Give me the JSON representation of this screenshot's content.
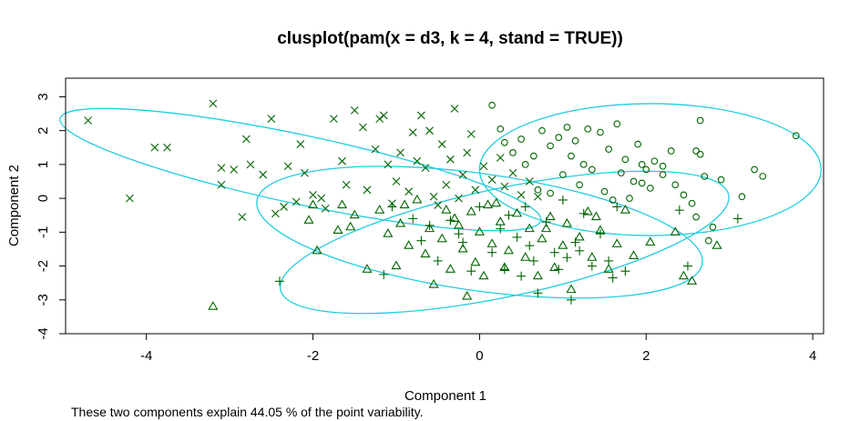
{
  "chart_data": {
    "type": "scatter",
    "title": "clusplot(pam(x = d3, k = 4, stand = TRUE))",
    "xlabel": "Component 1",
    "ylabel": "Component 2",
    "subtitle": "These two components explain 44.05 % of the point variability.",
    "xlim": [
      -4.97,
      4.13
    ],
    "ylim": [
      -4.0,
      3.55
    ],
    "xticks": [
      -4,
      -2,
      0,
      2,
      4
    ],
    "yticks": [
      -4,
      -3,
      -2,
      -1,
      0,
      1,
      2,
      3
    ],
    "grid": false,
    "point_color": "#006400",
    "ellipse_color": "#22ccdd",
    "series": [
      {
        "symbol": "cross",
        "points": [
          [
            -4.7,
            2.3
          ],
          [
            -4.2,
            0.0
          ],
          [
            -3.9,
            1.5
          ],
          [
            -3.75,
            1.5
          ],
          [
            -3.2,
            2.8
          ],
          [
            -3.1,
            0.9
          ],
          [
            -3.1,
            0.4
          ],
          [
            -2.95,
            0.85
          ],
          [
            -2.85,
            -0.55
          ],
          [
            -2.8,
            1.75
          ],
          [
            -2.75,
            1.0
          ],
          [
            -2.6,
            0.7
          ],
          [
            -2.5,
            2.35
          ],
          [
            -2.45,
            -0.45
          ],
          [
            -2.35,
            -0.25
          ],
          [
            -2.3,
            0.95
          ],
          [
            -2.2,
            -0.1
          ],
          [
            -2.15,
            1.6
          ],
          [
            -2.1,
            0.75
          ],
          [
            -2.0,
            0.1
          ],
          [
            -1.9,
            0.0
          ],
          [
            -1.85,
            -0.3
          ],
          [
            -1.75,
            2.35
          ],
          [
            -1.65,
            1.1
          ],
          [
            -1.6,
            0.4
          ],
          [
            -1.5,
            2.6
          ],
          [
            -1.4,
            2.1
          ],
          [
            -1.35,
            0.25
          ],
          [
            -1.25,
            1.45
          ],
          [
            -1.15,
            2.45
          ],
          [
            -1.1,
            1.0
          ],
          [
            -1.0,
            0.5
          ],
          [
            -0.95,
            1.35
          ],
          [
            -0.85,
            0.2
          ],
          [
            -0.7,
            2.45
          ],
          [
            -0.65,
            0.9
          ],
          [
            -0.55,
            0.05
          ],
          [
            -0.45,
            1.6
          ],
          [
            -0.4,
            0.4
          ],
          [
            -0.35,
            1.15
          ],
          [
            -0.3,
            2.65
          ],
          [
            -0.2,
            0.7
          ],
          [
            -0.15,
            1.35
          ],
          [
            -0.05,
            0.25
          ],
          [
            0.05,
            0.95
          ],
          [
            0.15,
            0.55
          ],
          [
            0.25,
            1.2
          ],
          [
            0.3,
            0.35
          ],
          [
            0.4,
            0.75
          ],
          [
            0.5,
            0.1
          ],
          [
            0.6,
            0.5
          ],
          [
            0.7,
            0.05
          ],
          [
            -1.2,
            2.35
          ],
          [
            -0.8,
            1.95
          ],
          [
            -0.6,
            2.0
          ],
          [
            -1.05,
            -0.15
          ],
          [
            -0.1,
            1.9
          ],
          [
            -0.25,
            0.0
          ],
          [
            -0.75,
            1.1
          ],
          [
            -0.5,
            -0.2
          ]
        ]
      },
      {
        "symbol": "circle",
        "points": [
          [
            0.15,
            2.75
          ],
          [
            0.25,
            2.05
          ],
          [
            0.3,
            1.65
          ],
          [
            0.4,
            1.35
          ],
          [
            0.5,
            1.75
          ],
          [
            0.55,
            1.0
          ],
          [
            0.65,
            1.25
          ],
          [
            0.7,
            0.25
          ],
          [
            0.75,
            2.0
          ],
          [
            0.85,
            1.55
          ],
          [
            0.95,
            1.8
          ],
          [
            1.0,
            0.7
          ],
          [
            1.05,
            2.1
          ],
          [
            1.1,
            1.25
          ],
          [
            1.15,
            1.7
          ],
          [
            1.2,
            0.4
          ],
          [
            1.3,
            2.05
          ],
          [
            1.35,
            0.85
          ],
          [
            1.45,
            1.95
          ],
          [
            1.5,
            0.2
          ],
          [
            1.55,
            1.45
          ],
          [
            1.65,
            2.2
          ],
          [
            1.7,
            0.75
          ],
          [
            1.75,
            1.15
          ],
          [
            1.8,
            0.0
          ],
          [
            1.85,
            0.5
          ],
          [
            1.9,
            1.6
          ],
          [
            1.95,
            1.0
          ],
          [
            2.0,
            0.85
          ],
          [
            2.05,
            0.3
          ],
          [
            2.1,
            1.1
          ],
          [
            2.2,
            0.7
          ],
          [
            2.3,
            1.4
          ],
          [
            2.35,
            0.4
          ],
          [
            2.45,
            0.1
          ],
          [
            2.55,
            -0.15
          ],
          [
            2.6,
            -0.55
          ],
          [
            2.65,
            1.3
          ],
          [
            2.7,
            0.65
          ],
          [
            2.75,
            -1.25
          ],
          [
            2.8,
            -0.85
          ],
          [
            2.9,
            0.55
          ],
          [
            3.15,
            0.05
          ],
          [
            3.3,
            0.85
          ],
          [
            3.4,
            0.65
          ],
          [
            3.8,
            1.85
          ],
          [
            0.85,
            0.15
          ],
          [
            1.25,
            1.0
          ],
          [
            1.6,
            -0.05
          ],
          [
            2.2,
            0.95
          ],
          [
            1.95,
            0.45
          ],
          [
            2.65,
            2.3
          ],
          [
            2.6,
            1.4
          ]
        ]
      },
      {
        "symbol": "triangle",
        "points": [
          [
            -3.2,
            -3.2
          ],
          [
            -2.05,
            -0.65
          ],
          [
            -2.0,
            -0.2
          ],
          [
            -1.95,
            -1.55
          ],
          [
            -1.65,
            -0.2
          ],
          [
            -1.55,
            -0.85
          ],
          [
            -1.35,
            -2.1
          ],
          [
            -1.2,
            -0.35
          ],
          [
            -1.1,
            -1.05
          ],
          [
            -1.0,
            -2.0
          ],
          [
            -0.95,
            -0.75
          ],
          [
            -0.85,
            -1.4
          ],
          [
            -0.75,
            -0.05
          ],
          [
            -0.65,
            -1.65
          ],
          [
            -0.6,
            -0.9
          ],
          [
            -0.55,
            -2.55
          ],
          [
            -0.45,
            -1.2
          ],
          [
            -0.4,
            -0.35
          ],
          [
            -0.35,
            -2.1
          ],
          [
            -0.25,
            -0.8
          ],
          [
            -0.2,
            -1.5
          ],
          [
            -0.15,
            -2.9
          ],
          [
            -0.1,
            -0.4
          ],
          [
            -0.05,
            -1.9
          ],
          [
            0.0,
            -1.0
          ],
          [
            0.05,
            -2.3
          ],
          [
            0.1,
            -0.2
          ],
          [
            0.15,
            -1.35
          ],
          [
            0.25,
            -0.7
          ],
          [
            0.3,
            -2.05
          ],
          [
            0.35,
            -1.55
          ],
          [
            0.45,
            -0.45
          ],
          [
            0.55,
            -1.75
          ],
          [
            0.6,
            -0.9
          ],
          [
            0.7,
            -2.3
          ],
          [
            0.75,
            -1.2
          ],
          [
            0.85,
            -0.55
          ],
          [
            0.9,
            -2.05
          ],
          [
            1.0,
            -1.4
          ],
          [
            1.05,
            -0.75
          ],
          [
            1.1,
            -2.7
          ],
          [
            1.2,
            -1.15
          ],
          [
            1.3,
            -0.4
          ],
          [
            1.35,
            -1.75
          ],
          [
            1.45,
            -0.95
          ],
          [
            1.55,
            -2.1
          ],
          [
            1.65,
            -1.35
          ],
          [
            1.75,
            -0.35
          ],
          [
            1.85,
            -1.7
          ],
          [
            2.05,
            -1.3
          ],
          [
            2.35,
            -1.0
          ],
          [
            2.45,
            -2.3
          ],
          [
            2.55,
            -2.45
          ],
          [
            2.85,
            -1.4
          ],
          [
            -1.7,
            -0.95
          ],
          [
            -0.3,
            -0.6
          ],
          [
            0.2,
            -0.15
          ],
          [
            1.4,
            -0.55
          ],
          [
            -1.5,
            -0.5
          ],
          [
            -0.9,
            -0.2
          ],
          [
            0.8,
            -0.9
          ]
        ]
      },
      {
        "symbol": "plus",
        "points": [
          [
            -2.4,
            -2.45
          ],
          [
            -1.15,
            -2.25
          ],
          [
            -1.05,
            -0.25
          ],
          [
            -0.8,
            -0.6
          ],
          [
            -0.5,
            -1.85
          ],
          [
            -0.35,
            -0.65
          ],
          [
            -0.2,
            -1.3
          ],
          [
            -0.1,
            -2.15
          ],
          [
            0.0,
            -0.25
          ],
          [
            0.15,
            -1.6
          ],
          [
            0.25,
            -0.9
          ],
          [
            0.3,
            -2.1
          ],
          [
            0.45,
            -1.15
          ],
          [
            0.55,
            -0.25
          ],
          [
            0.65,
            -1.85
          ],
          [
            0.7,
            -2.8
          ],
          [
            0.8,
            -0.7
          ],
          [
            0.9,
            -1.6
          ],
          [
            0.95,
            -2.1
          ],
          [
            1.0,
            -0.05
          ],
          [
            1.1,
            -3.0
          ],
          [
            1.15,
            -1.3
          ],
          [
            1.25,
            -0.45
          ],
          [
            1.35,
            -2.0
          ],
          [
            1.45,
            -1.05
          ],
          [
            1.55,
            -1.85
          ],
          [
            1.65,
            -0.25
          ],
          [
            1.75,
            -2.15
          ],
          [
            2.4,
            -0.35
          ],
          [
            2.5,
            -2.0
          ],
          [
            3.1,
            -0.6
          ],
          [
            -0.7,
            -1.25
          ],
          [
            0.35,
            -0.5
          ],
          [
            1.2,
            -1.55
          ],
          [
            -0.25,
            -1.05
          ],
          [
            0.6,
            -1.4
          ],
          [
            1.05,
            -1.75
          ],
          [
            -0.6,
            -0.8
          ],
          [
            0.5,
            -2.3
          ],
          [
            1.6,
            -2.35
          ]
        ]
      }
    ],
    "ellipses": [
      {
        "cx": -2.15,
        "cy": 0.85,
        "rx": 2.95,
        "ry": 1.02,
        "angle_deg": -12
      },
      {
        "cx": 2.05,
        "cy": 0.85,
        "rx": 2.05,
        "ry": 1.95,
        "angle_deg": 0
      },
      {
        "cx": 0.0,
        "cy": -1.0,
        "rx": 2.7,
        "ry": 1.73,
        "angle_deg": -8
      },
      {
        "cx": 0.3,
        "cy": -1.3,
        "rx": 2.75,
        "ry": 1.6,
        "angle_deg": 12
      }
    ]
  }
}
